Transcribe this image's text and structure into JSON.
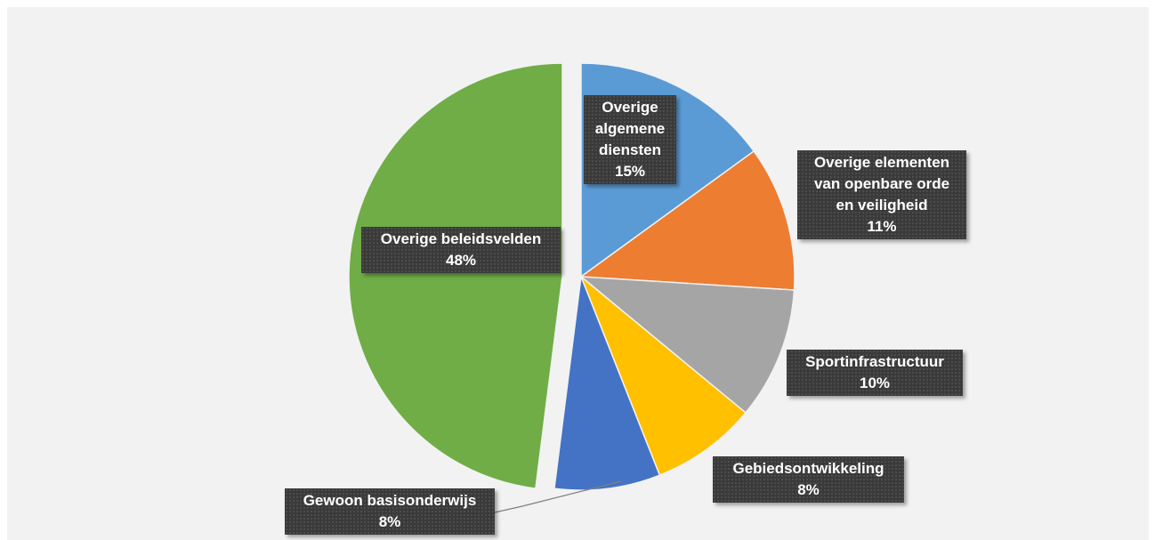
{
  "chart_data": {
    "type": "pie",
    "slices": [
      {
        "name": "Overige algemene diensten",
        "label_lines": [
          "Overige",
          "algemene",
          "diensten"
        ],
        "value": 15,
        "value_label": "15%",
        "color": "#5b9bd5",
        "exploded": true
      },
      {
        "name": "Overige elementen van openbare orde en veiligheid",
        "label_lines": [
          "Overige elementen",
          "van openbare orde",
          "en veiligheid"
        ],
        "value": 11,
        "value_label": "11%",
        "color": "#ed7d31",
        "exploded": true
      },
      {
        "name": "Sportinfrastructuur",
        "label_lines": [
          "Sportinfrastructuur"
        ],
        "value": 10,
        "value_label": "10%",
        "color": "#a5a5a5",
        "exploded": true
      },
      {
        "name": "Gebiedsontwikkeling",
        "label_lines": [
          "Gebiedsontwikkeling"
        ],
        "value": 8,
        "value_label": "8%",
        "color": "#ffc000",
        "exploded": true
      },
      {
        "name": "Gewoon basisonderwijs",
        "label_lines": [
          "Gewoon basisonderwijs"
        ],
        "value": 8,
        "value_label": "8%",
        "color": "#4472c4",
        "exploded": true
      },
      {
        "name": "Overige beleidsvelden",
        "label_lines": [
          "Overige beleidsvelden"
        ],
        "value": 48,
        "value_label": "48%",
        "color": "#70ad47",
        "exploded": false
      }
    ]
  }
}
